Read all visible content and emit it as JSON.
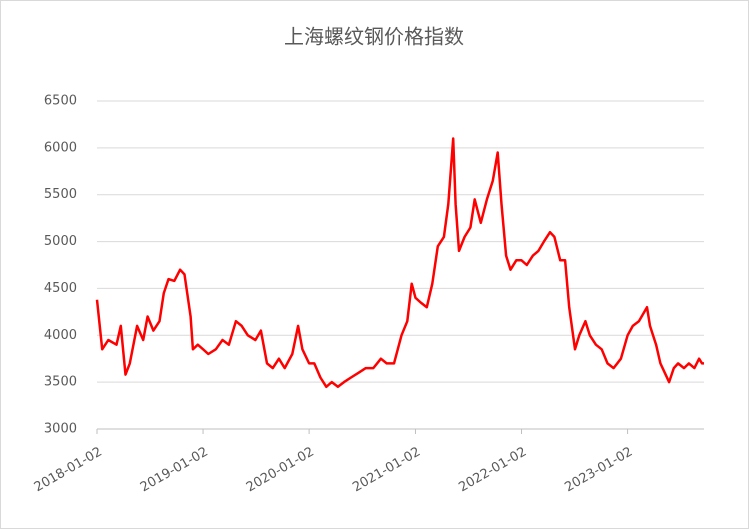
{
  "chart_data": {
    "type": "line",
    "title": "上海螺纹钢价格指数",
    "x": [
      "2018-01-02",
      "2018-01-20",
      "2018-02-10",
      "2018-03-10",
      "2018-03-25",
      "2018-04-10",
      "2018-04-25",
      "2018-05-20",
      "2018-06-10",
      "2018-06-25",
      "2018-07-15",
      "2018-08-05",
      "2018-08-20",
      "2018-09-05",
      "2018-09-25",
      "2018-10-15",
      "2018-10-30",
      "2018-11-20",
      "2018-11-28",
      "2018-12-15",
      "2019-01-02",
      "2019-01-20",
      "2019-02-15",
      "2019-03-10",
      "2019-04-01",
      "2019-04-25",
      "2019-05-15",
      "2019-06-05",
      "2019-07-01",
      "2019-07-20",
      "2019-08-10",
      "2019-08-30",
      "2019-09-20",
      "2019-10-10",
      "2019-11-05",
      "2019-11-25",
      "2019-12-10",
      "2020-01-02",
      "2020-01-20",
      "2020-02-10",
      "2020-03-01",
      "2020-03-20",
      "2020-04-10",
      "2020-05-01",
      "2020-05-25",
      "2020-06-20",
      "2020-07-15",
      "2020-08-10",
      "2020-09-05",
      "2020-09-25",
      "2020-10-20",
      "2020-11-15",
      "2020-12-05",
      "2020-12-20",
      "2021-01-02",
      "2021-01-20",
      "2021-02-10",
      "2021-03-01",
      "2021-03-20",
      "2021-04-10",
      "2021-04-25",
      "2021-05-12",
      "2021-05-20",
      "2021-06-01",
      "2021-06-20",
      "2021-07-10",
      "2021-07-25",
      "2021-08-15",
      "2021-09-05",
      "2021-09-25",
      "2021-10-12",
      "2021-10-25",
      "2021-11-10",
      "2021-11-25",
      "2021-12-15",
      "2022-01-02",
      "2022-01-20",
      "2022-02-10",
      "2022-03-01",
      "2022-03-20",
      "2022-04-10",
      "2022-04-25",
      "2022-05-15",
      "2022-06-01",
      "2022-06-15",
      "2022-07-05",
      "2022-07-20",
      "2022-08-10",
      "2022-08-25",
      "2022-09-15",
      "2022-10-05",
      "2022-10-25",
      "2022-11-15",
      "2022-12-10",
      "2023-01-02",
      "2023-01-20",
      "2023-02-10",
      "2023-03-10",
      "2023-03-20",
      "2023-04-10",
      "2023-04-25",
      "2023-05-10",
      "2023-05-25",
      "2023-06-10",
      "2023-06-25",
      "2023-07-15",
      "2023-08-01",
      "2023-08-20",
      "2023-09-05",
      "2023-09-15",
      "2023-09-22"
    ],
    "series": [
      {
        "name": "上海螺纹钢价格指数",
        "color": "#ff0000",
        "values": [
          4380,
          3850,
          3950,
          3900,
          4100,
          3580,
          3700,
          4100,
          3950,
          4200,
          4050,
          4150,
          4450,
          4600,
          4580,
          4700,
          4650,
          4200,
          3850,
          3900,
          3850,
          3800,
          3850,
          3950,
          3900,
          4150,
          4100,
          4000,
          3950,
          4050,
          3700,
          3650,
          3750,
          3650,
          3800,
          4100,
          3850,
          3700,
          3700,
          3550,
          3450,
          3500,
          3450,
          3500,
          3550,
          3600,
          3650,
          3650,
          3750,
          3700,
          3700,
          4000,
          4150,
          4550,
          4400,
          4350,
          4300,
          4550,
          4950,
          5050,
          5400,
          6100,
          5400,
          4900,
          5050,
          5150,
          5450,
          5200,
          5450,
          5650,
          5950,
          5400,
          4850,
          4700,
          4800,
          4800,
          4750,
          4850,
          4900,
          5000,
          5100,
          5050,
          4800,
          4800,
          4300,
          3850,
          4000,
          4150,
          4000,
          3900,
          3850,
          3700,
          3650,
          3750,
          4000,
          4100,
          4150,
          4300,
          4100,
          3900,
          3700,
          3600,
          3500,
          3650,
          3700,
          3650,
          3700,
          3650,
          3750,
          3700,
          3700
        ]
      }
    ],
    "xlim": [
      "2018-01-02",
      "2023-09-22"
    ],
    "xticks": [
      "2018-01-02",
      "2019-01-02",
      "2020-01-02",
      "2021-01-02",
      "2022-01-02",
      "2023-01-02"
    ],
    "ylim": [
      3000,
      6500
    ],
    "yticks": [
      3000,
      3500,
      4000,
      4500,
      5000,
      5500,
      6000,
      6500
    ],
    "grid": true
  }
}
